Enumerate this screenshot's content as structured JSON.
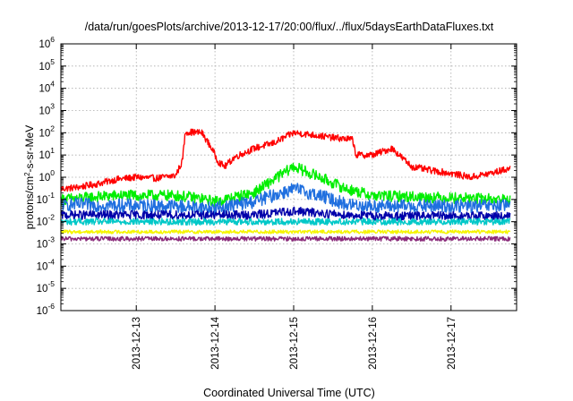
{
  "chart_data": {
    "type": "line",
    "title": "/data/run/goesPlots/archive/2013-12-17/20:00/flux/../flux/5daysEarthDataFluxes.txt",
    "xlabel": "Coordinated Universal Time (UTC)",
    "ylabel": "protons/cm2-s-sr-MeV",
    "ylabel_parts": {
      "base": "protons/cm",
      "sup": "2",
      "rest": "-s-sr-MeV"
    },
    "y_scale": "log",
    "ylim": [
      1e-06,
      1000000.0
    ],
    "xlim": [
      "2013-12-12T01:00",
      "2013-12-17T20:00"
    ],
    "x_ticks": [
      "2013-12-13",
      "2013-12-14",
      "2013-12-15",
      "2013-12-16",
      "2013-12-17"
    ],
    "y_ticks": [
      {
        "value": 1e-06,
        "base": "10",
        "exp": "-6"
      },
      {
        "value": 1e-05,
        "base": "10",
        "exp": "-5"
      },
      {
        "value": 0.0001,
        "base": "10",
        "exp": "-4"
      },
      {
        "value": 0.001,
        "base": "10",
        "exp": "-3"
      },
      {
        "value": 0.01,
        "base": "10",
        "exp": "-2"
      },
      {
        "value": 0.1,
        "base": "10",
        "exp": "-1"
      },
      {
        "value": 1,
        "base": "10",
        "exp": "0"
      },
      {
        "value": 10,
        "base": "10",
        "exp": "1"
      },
      {
        "value": 100,
        "base": "10",
        "exp": "2"
      },
      {
        "value": 1000,
        "base": "10",
        "exp": "3"
      },
      {
        "value": 10000,
        "base": "10",
        "exp": "4"
      },
      {
        "value": 100000,
        "base": "10",
        "exp": "5"
      },
      {
        "value": 1000000,
        "base": "10",
        "exp": "6"
      }
    ],
    "grid": true,
    "legend": "none",
    "series": [
      {
        "color": "#ff0000",
        "noise": 0.15,
        "points": [
          [
            "2013-12-12T01:00",
            0.3
          ],
          [
            "2013-12-12T06:00",
            0.35
          ],
          [
            "2013-12-12T12:00",
            0.5
          ],
          [
            "2013-12-12T18:00",
            0.8
          ],
          [
            "2013-12-13T00:00",
            1.0
          ],
          [
            "2013-12-13T06:00",
            0.9
          ],
          [
            "2013-12-13T12:00",
            1.2
          ],
          [
            "2013-12-13T14:00",
            5
          ],
          [
            "2013-12-13T15:00",
            110
          ],
          [
            "2013-12-13T20:00",
            100
          ],
          [
            "2013-12-13T23:00",
            20
          ],
          [
            "2013-12-14T01:00",
            5
          ],
          [
            "2013-12-14T03:00",
            3
          ],
          [
            "2013-12-14T06:00",
            8
          ],
          [
            "2013-12-14T12:00",
            20
          ],
          [
            "2013-12-14T18:00",
            35
          ],
          [
            "2013-12-15T00:00",
            100
          ],
          [
            "2013-12-15T06:00",
            80
          ],
          [
            "2013-12-15T12:00",
            60
          ],
          [
            "2013-12-15T18:00",
            50
          ],
          [
            "2013-12-15T19:00",
            10
          ],
          [
            "2013-12-16T00:00",
            10
          ],
          [
            "2013-12-16T06:00",
            20
          ],
          [
            "2013-12-16T12:00",
            3
          ],
          [
            "2013-12-16T18:00",
            2
          ],
          [
            "2013-12-17T00:00",
            1.5
          ],
          [
            "2013-12-17T06:00",
            1.0
          ],
          [
            "2013-12-17T12:00",
            1.5
          ],
          [
            "2013-12-17T18:00",
            2.5
          ]
        ]
      },
      {
        "color": "#00ee00",
        "noise": 0.25,
        "points": [
          [
            "2013-12-12T01:00",
            0.1
          ],
          [
            "2013-12-12T18:00",
            0.15
          ],
          [
            "2013-12-13T12:00",
            0.15
          ],
          [
            "2013-12-13T18:00",
            0.12
          ],
          [
            "2013-12-14T00:00",
            0.08
          ],
          [
            "2013-12-14T12:00",
            0.2
          ],
          [
            "2013-12-14T18:00",
            0.8
          ],
          [
            "2013-12-15T00:00",
            3.0
          ],
          [
            "2013-12-15T08:00",
            1.0
          ],
          [
            "2013-12-15T16:00",
            0.3
          ],
          [
            "2013-12-16T00:00",
            0.15
          ],
          [
            "2013-12-17T18:00",
            0.1
          ]
        ]
      },
      {
        "color": "#1f6fdf",
        "noise": 0.3,
        "points": [
          [
            "2013-12-12T01:00",
            0.06
          ],
          [
            "2013-12-13T12:00",
            0.05
          ],
          [
            "2013-12-14T00:00",
            0.04
          ],
          [
            "2013-12-14T12:00",
            0.08
          ],
          [
            "2013-12-15T00:00",
            0.3
          ],
          [
            "2013-12-15T08:00",
            0.15
          ],
          [
            "2013-12-15T16:00",
            0.06
          ],
          [
            "2013-12-16T00:00",
            0.05
          ],
          [
            "2013-12-17T18:00",
            0.05
          ]
        ]
      },
      {
        "color": "#0000aa",
        "noise": 0.2,
        "points": [
          [
            "2013-12-12T01:00",
            0.02
          ],
          [
            "2013-12-14T12:00",
            0.02
          ],
          [
            "2013-12-15T00:00",
            0.03
          ],
          [
            "2013-12-15T12:00",
            0.022
          ],
          [
            "2013-12-16T00:00",
            0.018
          ],
          [
            "2013-12-17T18:00",
            0.018
          ]
        ]
      },
      {
        "color": "#00c8c8",
        "noise": 0.15,
        "points": [
          [
            "2013-12-12T01:00",
            0.01
          ],
          [
            "2013-12-17T18:00",
            0.01
          ]
        ]
      },
      {
        "color": "#f5f500",
        "noise": 0.08,
        "points": [
          [
            "2013-12-12T01:00",
            0.0035
          ],
          [
            "2013-12-17T18:00",
            0.0035
          ]
        ]
      },
      {
        "color": "#8a2a7a",
        "noise": 0.1,
        "points": [
          [
            "2013-12-12T01:00",
            0.0017
          ],
          [
            "2013-12-17T18:00",
            0.0017
          ]
        ]
      }
    ]
  }
}
